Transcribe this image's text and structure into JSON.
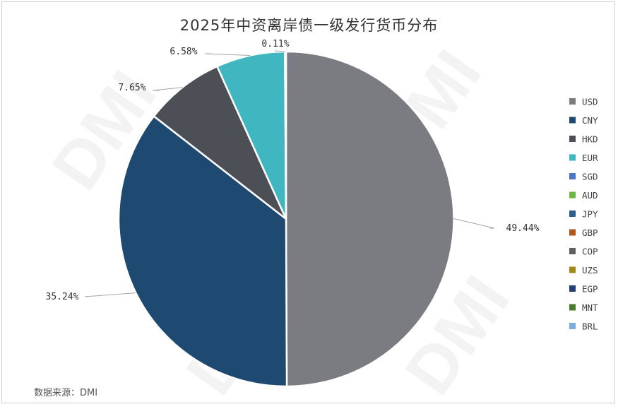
{
  "chart_data": {
    "type": "pie",
    "title": "2025年中资离岸债一级发行货币分布",
    "categories": [
      "USD",
      "CNY",
      "HKD",
      "EUR",
      "SGD",
      "AUD",
      "JPY",
      "GBP",
      "COP",
      "UZS",
      "EGP",
      "MNT",
      "BRL"
    ],
    "values": [
      49.44,
      35.24,
      7.65,
      6.58,
      0.11,
      0,
      0,
      0,
      0,
      0,
      0,
      0,
      0
    ],
    "labels": [
      "49.44%",
      "35.24%",
      "7.65%",
      "6.58%",
      "0.11%"
    ],
    "colors": [
      "#7a7c82",
      "#1e4a72",
      "#4d4f57",
      "#3fb6c0",
      "#4a78c4",
      "#6db842",
      "#2d5f91",
      "#b0561b",
      "#5f6062",
      "#a08a18",
      "#233f75",
      "#4a7a2d",
      "#7aaede"
    ],
    "legend_position": "right",
    "source": "数据来源：DMI"
  },
  "watermark": "DMI"
}
